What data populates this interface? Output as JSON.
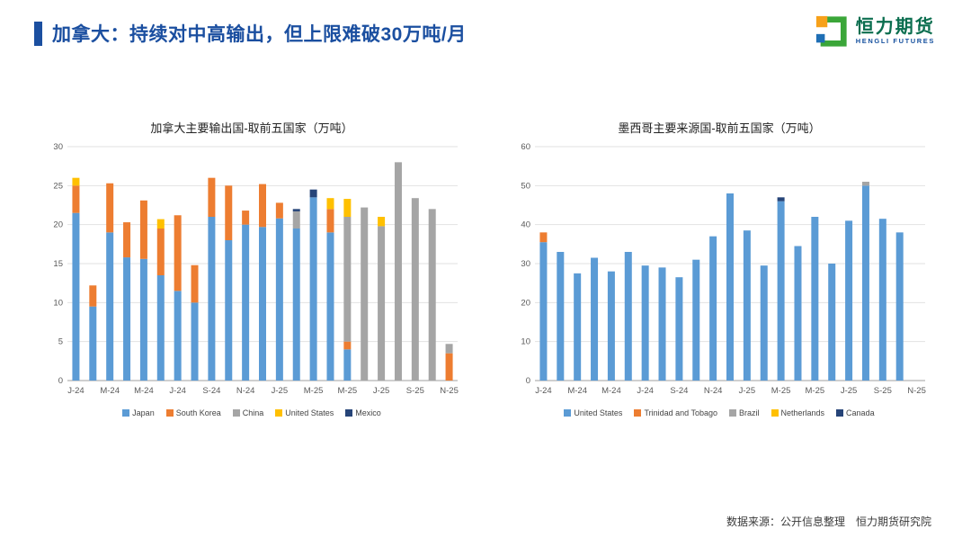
{
  "header": {
    "title": "加拿大：持续对中高输出，但上限难破30万吨/月",
    "accent_color": "#1b4fa0"
  },
  "logo": {
    "name_cn": "恒力期货",
    "name_en": "HENGLI FUTURES"
  },
  "footer": {
    "source": "数据来源：公开信息整理　恒力期货研究院"
  },
  "chart_data": [
    {
      "id": "canada-exports",
      "type": "bar",
      "stacked": true,
      "title": "加拿大主要输出国-取前五国家（万吨）",
      "ylim": [
        0,
        30
      ],
      "ytick": 5,
      "grid": true,
      "legend_position": "bottom",
      "tick_every": 2,
      "categories": [
        "J-24",
        "F-24",
        "M-24",
        "A-24",
        "M-24",
        "J-24",
        "J-24",
        "A-24",
        "S-24",
        "O-24",
        "N-24",
        "D-24",
        "J-25",
        "F-25",
        "M-25",
        "A-25",
        "M-25",
        "J-25",
        "J-25",
        "A-25",
        "S-25",
        "O-25",
        "N-25"
      ],
      "series": [
        {
          "name": "Japan",
          "color": "#5B9BD5",
          "values": [
            21.5,
            9.5,
            19.0,
            15.8,
            15.6,
            13.5,
            11.5,
            10.0,
            21.0,
            18.0,
            20.0,
            19.7,
            20.8,
            19.5,
            23.5,
            19.0,
            4.0,
            0,
            0,
            0,
            0,
            0,
            0
          ]
        },
        {
          "name": "South Korea",
          "color": "#ED7D31",
          "values": [
            3.5,
            2.7,
            6.3,
            4.5,
            7.5,
            6.0,
            9.7,
            4.8,
            5.0,
            7.0,
            1.8,
            5.5,
            2.0,
            0,
            0,
            3.0,
            1.0,
            0,
            0,
            0,
            0,
            0,
            3.5
          ]
        },
        {
          "name": "China",
          "color": "#A5A5A5",
          "values": [
            0,
            0,
            0,
            0,
            0,
            0,
            0,
            0,
            0,
            0,
            0,
            0,
            0,
            2.2,
            0,
            0,
            16.0,
            22.2,
            19.8,
            28.0,
            23.4,
            22.0,
            1.2
          ]
        },
        {
          "name": "United States",
          "color": "#FFC000",
          "values": [
            1.0,
            0,
            0,
            0,
            0,
            1.2,
            0,
            0,
            0,
            0,
            0,
            0,
            0,
            0,
            0,
            1.4,
            2.3,
            0,
            1.2,
            0,
            0,
            0,
            0
          ]
        },
        {
          "name": "Mexico",
          "color": "#264478",
          "values": [
            0,
            0,
            0,
            0,
            0,
            0,
            0,
            0,
            0,
            0,
            0,
            0,
            0,
            0.3,
            1.0,
            0,
            0,
            0,
            0,
            0,
            0,
            0,
            0
          ]
        }
      ]
    },
    {
      "id": "mexico-imports",
      "type": "bar",
      "stacked": true,
      "title": "墨西哥主要来源国-取前五国家（万吨）",
      "ylim": [
        0,
        60
      ],
      "ytick": 10,
      "grid": true,
      "legend_position": "bottom",
      "tick_every": 2,
      "categories": [
        "J-24",
        "F-24",
        "M-24",
        "A-24",
        "M-24",
        "J-24",
        "J-24",
        "A-24",
        "S-24",
        "O-24",
        "N-24",
        "D-24",
        "J-25",
        "F-25",
        "M-25",
        "A-25",
        "M-25",
        "J-25",
        "J-25",
        "A-25",
        "S-25",
        "O-25",
        "N-25"
      ],
      "series": [
        {
          "name": "United States",
          "color": "#5B9BD5",
          "values": [
            35.5,
            33,
            27.5,
            31.5,
            28,
            33,
            29.5,
            29,
            26.5,
            31,
            37,
            48,
            38.5,
            29.5,
            46,
            34.5,
            42,
            30,
            41,
            50,
            41.5,
            38,
            0
          ]
        },
        {
          "name": "Trinidad and Tobago",
          "color": "#ED7D31",
          "values": [
            2.5,
            0,
            0,
            0,
            0,
            0,
            0,
            0,
            0,
            0,
            0,
            0,
            0,
            0,
            0,
            0,
            0,
            0,
            0,
            0,
            0,
            0,
            0
          ]
        },
        {
          "name": "Brazil",
          "color": "#A5A5A5",
          "values": [
            0,
            0,
            0,
            0,
            0,
            0,
            0,
            0,
            0,
            0,
            0,
            0,
            0,
            0,
            0,
            0,
            0,
            0,
            0,
            1.0,
            0,
            0,
            0
          ]
        },
        {
          "name": "Netherlands",
          "color": "#FFC000",
          "values": [
            0,
            0,
            0,
            0,
            0,
            0,
            0,
            0,
            0,
            0,
            0,
            0,
            0,
            0,
            0,
            0,
            0,
            0,
            0,
            0,
            0,
            0,
            0
          ]
        },
        {
          "name": "Canada",
          "color": "#264478",
          "values": [
            0,
            0,
            0,
            0,
            0,
            0,
            0,
            0,
            0,
            0,
            0,
            0,
            0,
            0,
            1.0,
            0,
            0,
            0,
            0,
            0,
            0,
            0,
            0
          ]
        }
      ]
    }
  ]
}
